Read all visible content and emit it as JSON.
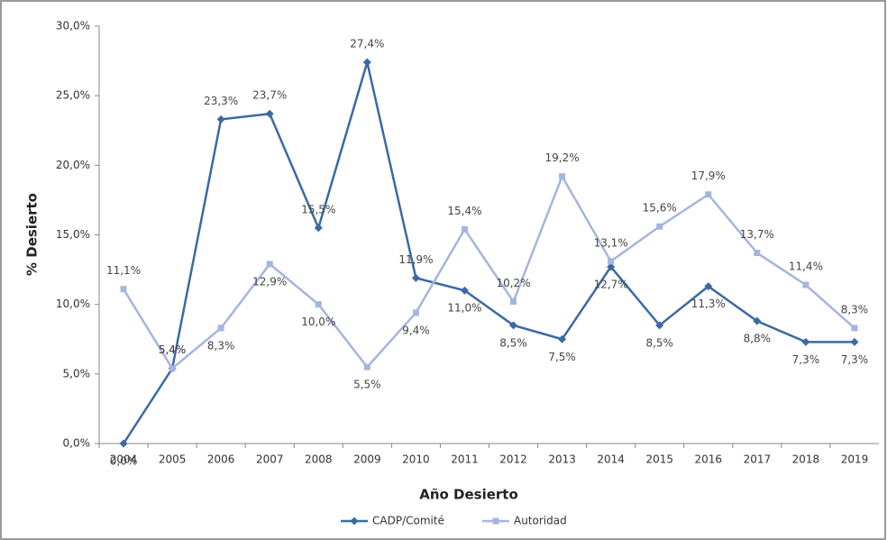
{
  "chart_data": {
    "type": "line",
    "x_label": "Año Desierto",
    "y_label": "% Desierto",
    "categories": [
      "2004",
      "2005",
      "2006",
      "2007",
      "2008",
      "2009",
      "2010",
      "2011",
      "2012",
      "2013",
      "2014",
      "2015",
      "2016",
      "2017",
      "2018",
      "2019"
    ],
    "series": [
      {
        "name": "CADP/Comité",
        "color": "#3b6aa3",
        "marker": "diamond",
        "values": [
          0.0,
          5.4,
          23.3,
          23.7,
          15.5,
          27.4,
          11.9,
          11.0,
          8.5,
          7.5,
          12.7,
          8.5,
          11.3,
          8.8,
          7.3,
          7.3
        ],
        "value_labels": [
          "0,0%",
          "5,4%",
          "23,3%",
          "23,7%",
          "15,5%",
          "27,4%",
          "11,9%",
          "11,0%",
          "8,5%",
          "7,5%",
          "12,7%",
          "8,5%",
          "11,3%",
          "8,8%",
          "7,3%",
          "7,3%"
        ]
      },
      {
        "name": "Autoridad",
        "color": "#a4b6dd",
        "marker": "square",
        "values": [
          11.1,
          5.4,
          8.3,
          12.9,
          10.0,
          5.5,
          9.4,
          15.4,
          10.2,
          19.2,
          13.1,
          15.6,
          17.9,
          13.7,
          11.4,
          8.3
        ],
        "value_labels": [
          "11,1%",
          "5,4%",
          "8,3%",
          "12,9%",
          "10,0%",
          "5,5%",
          "9,4%",
          "15,4%",
          "10,2%",
          "19,2%",
          "13,1%",
          "15,6%",
          "17,9%",
          "13,7%",
          "11,4%",
          "8,3%"
        ]
      }
    ],
    "ylim": [
      0,
      30
    ],
    "yticks": [
      {
        "value": 0,
        "label": "0,0%"
      },
      {
        "value": 5,
        "label": "5,0%"
      },
      {
        "value": 10,
        "label": "10,0%"
      },
      {
        "value": 15,
        "label": "15,0%"
      },
      {
        "value": 20,
        "label": "20,0%"
      },
      {
        "value": 25,
        "label": "25,0%"
      },
      {
        "value": 30,
        "label": "30,0%"
      }
    ],
    "legend": "bottom",
    "grid": false
  }
}
